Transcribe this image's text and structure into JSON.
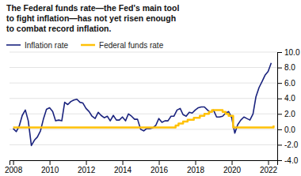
{
  "chart_data": {
    "type": "line",
    "title": [
      "The Federal funds rate—the Fed's main tool",
      "to fight inflation—has not yet risen enough",
      "to combat record inflation."
    ],
    "xlim": [
      2007.8,
      2022.5
    ],
    "xticks": [
      2008,
      2010,
      2012,
      2014,
      2016,
      2018,
      2020,
      2022
    ],
    "ylim": [
      -4.0,
      10.0
    ],
    "yticks": [
      {
        "value": -4.0,
        "label": "-4.0"
      },
      {
        "value": -2.0,
        "label": "-2.0"
      },
      {
        "value": 0.0,
        "label": "0.0"
      },
      {
        "value": 2.0,
        "label": "2.0"
      },
      {
        "value": 4.0,
        "label": "4.0"
      },
      {
        "value": 6.0,
        "label": "6.0"
      },
      {
        "value": 8.0,
        "label": "8.0"
      },
      {
        "value": 10.0,
        "label": "10.0"
      }
    ],
    "grid": true,
    "series": [
      {
        "name": "Inflation rate",
        "type": "line",
        "color": "#1a237e",
        "x": [
          2008.0,
          2008.17,
          2008.33,
          2008.5,
          2008.67,
          2008.83,
          2009.0,
          2009.17,
          2009.33,
          2009.5,
          2009.67,
          2009.83,
          2010.0,
          2010.17,
          2010.33,
          2010.5,
          2010.67,
          2010.83,
          2011.0,
          2011.17,
          2011.33,
          2011.5,
          2011.67,
          2011.83,
          2012.0,
          2012.17,
          2012.33,
          2012.5,
          2012.67,
          2012.83,
          2013.0,
          2013.17,
          2013.33,
          2013.5,
          2013.67,
          2013.83,
          2014.0,
          2014.17,
          2014.33,
          2014.5,
          2014.67,
          2014.83,
          2015.0,
          2015.17,
          2015.33,
          2015.5,
          2015.67,
          2015.83,
          2016.0,
          2016.17,
          2016.33,
          2016.5,
          2016.67,
          2016.83,
          2017.0,
          2017.17,
          2017.33,
          2017.5,
          2017.67,
          2017.83,
          2018.0,
          2018.17,
          2018.33,
          2018.5,
          2018.67,
          2018.83,
          2019.0,
          2019.17,
          2019.33,
          2019.5,
          2019.67,
          2019.83,
          2020.0,
          2020.17,
          2020.33,
          2020.5,
          2020.67,
          2020.83,
          2021.0,
          2021.17,
          2021.33,
          2021.5,
          2021.67,
          2021.83,
          2022.0,
          2022.17
        ],
        "values": [
          0.1,
          -0.3,
          0.4,
          1.8,
          2.5,
          1.1,
          -2.1,
          -1.4,
          -1.0,
          -0.2,
          1.4,
          2.6,
          2.8,
          2.3,
          1.1,
          1.2,
          1.1,
          3.5,
          3.2,
          3.6,
          3.8,
          3.9,
          3.5,
          3.4,
          2.7,
          2.3,
          1.7,
          1.4,
          2.2,
          1.8,
          1.5,
          1.7,
          1.1,
          1.8,
          1.2,
          1.2,
          1.6,
          1.1,
          2.0,
          1.7,
          1.3,
          1.3,
          0.0,
          -0.2,
          0.1,
          0.1,
          0.2,
          0.5,
          1.4,
          0.9,
          1.1,
          1.1,
          1.7,
          1.7,
          2.5,
          2.7,
          1.9,
          1.7,
          2.2,
          2.1,
          2.5,
          2.8,
          2.9,
          2.9,
          2.5,
          2.2,
          2.5,
          1.6,
          1.6,
          1.7,
          2.1,
          2.3,
          1.5,
          -0.5,
          0.6,
          1.2,
          1.6,
          1.4,
          1.2,
          2.0,
          4.2,
          5.4,
          6.2,
          7.0,
          7.5,
          8.6
        ]
      },
      {
        "name": "Federal funds rate",
        "type": "step",
        "color": "#FFC107",
        "x": [
          2008.0,
          2009.0,
          2015.92,
          2016.92,
          2017.08,
          2017.33,
          2017.58,
          2017.92,
          2018.25,
          2018.5,
          2018.75,
          2018.92,
          2019.0,
          2019.5,
          2019.67,
          2019.83,
          2020.08,
          2020.25,
          2022.0,
          2022.3
        ],
        "values": [
          0.25,
          0.25,
          0.25,
          0.5,
          0.75,
          1.0,
          1.25,
          1.5,
          1.75,
          2.0,
          2.25,
          2.5,
          2.5,
          2.25,
          2.0,
          1.75,
          0.25,
          0.25,
          0.25,
          0.5
        ]
      }
    ]
  }
}
